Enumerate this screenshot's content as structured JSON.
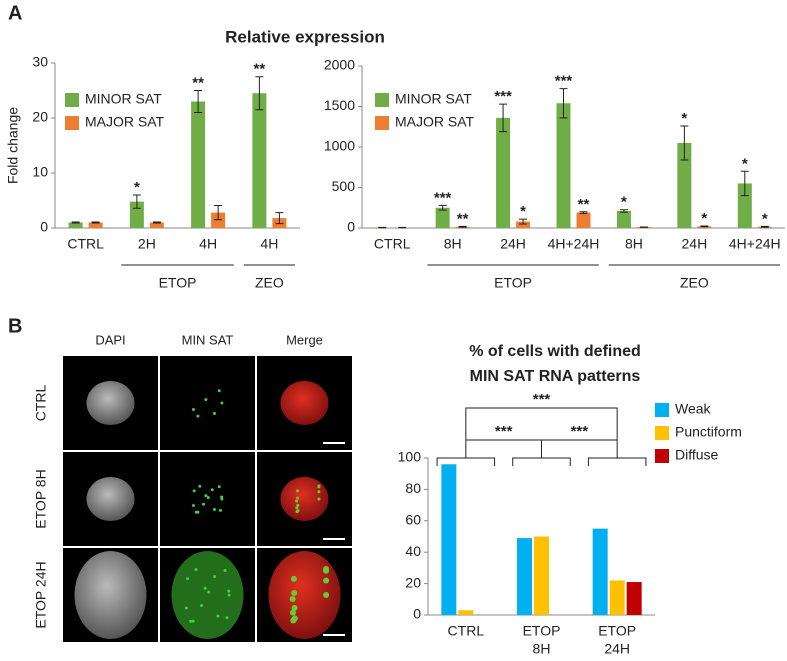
{
  "panels": {
    "a": "A",
    "b": "B"
  },
  "panel_a_title": "Relative expression",
  "images": {
    "columns": [
      "DAPI",
      "MIN SAT",
      "Merge"
    ],
    "rows": [
      "CTRL",
      "ETOP 8H",
      "ETOP 24H"
    ]
  },
  "chart_data": [
    {
      "type": "bar",
      "y_label": "Fold change",
      "categories": [
        "CTRL",
        "2H",
        "4H",
        "4H"
      ],
      "groups": [
        null,
        "ETOP",
        "ETOP",
        "ZEO"
      ],
      "ylim": [
        0,
        30
      ],
      "yticks": [
        0,
        10,
        20,
        30
      ],
      "legend": "upper left",
      "series": [
        {
          "name": "MINOR SAT",
          "color": "#70ad47",
          "values": [
            1,
            4.8,
            23,
            24.5
          ],
          "errors": [
            0.1,
            1.2,
            2,
            3
          ],
          "significance": [
            null,
            "*",
            "**",
            "**"
          ]
        },
        {
          "name": "MAJOR SAT",
          "color": "#ed7d31",
          "values": [
            1,
            1,
            2.8,
            1.8
          ],
          "errors": [
            0.1,
            0.1,
            1.3,
            1
          ],
          "significance": [
            null,
            null,
            null,
            null
          ]
        }
      ]
    },
    {
      "type": "bar",
      "categories": [
        "CTRL",
        "8H",
        "24H",
        "4H+24H",
        "8H",
        "24H",
        "4H+24H"
      ],
      "groups": [
        null,
        "ETOP",
        "ETOP",
        "ETOP",
        "ZEO",
        "ZEO",
        "ZEO"
      ],
      "ylim": [
        0,
        2000
      ],
      "yticks": [
        0,
        500,
        1000,
        1500,
        2000
      ],
      "legend": "upper left",
      "series": [
        {
          "name": "MINOR SAT",
          "color": "#70ad47",
          "values": [
            5,
            250,
            1360,
            1540,
            210,
            1050,
            550
          ],
          "errors": [
            2,
            30,
            170,
            180,
            15,
            210,
            150
          ],
          "significance": [
            null,
            "***",
            "***",
            "***",
            "*",
            "*",
            "*"
          ]
        },
        {
          "name": "MAJOR SAT",
          "color": "#ed7d31",
          "values": [
            5,
            15,
            80,
            190,
            10,
            20,
            15
          ],
          "errors": [
            2,
            5,
            30,
            10,
            3,
            5,
            5
          ],
          "significance": [
            null,
            "**",
            "*",
            "**",
            null,
            "*",
            "*"
          ]
        }
      ]
    },
    {
      "type": "bar",
      "title": [
        "% of cells with defined",
        "MIN SAT RNA patterns"
      ],
      "categories": [
        [
          "CTRL"
        ],
        [
          "ETOP",
          "8H"
        ],
        [
          "ETOP",
          "24H"
        ]
      ],
      "ylim": [
        0,
        100
      ],
      "yticks": [
        0,
        20,
        40,
        60,
        80,
        100
      ],
      "legend": "upper right",
      "comparisons": [
        {
          "between": [
            0,
            1
          ],
          "label": "***"
        },
        {
          "between": [
            1,
            2
          ],
          "label": "***"
        },
        {
          "between": [
            0,
            2
          ],
          "label": "***"
        }
      ],
      "series": [
        {
          "name": "Weak",
          "color": "#00b0f0",
          "values": [
            96,
            49,
            55
          ]
        },
        {
          "name": "Punctiform",
          "color": "#ffc000",
          "values": [
            3,
            50,
            22
          ]
        },
        {
          "name": "Diffuse",
          "color": "#c00000",
          "values": [
            0,
            0,
            21
          ]
        }
      ]
    }
  ]
}
